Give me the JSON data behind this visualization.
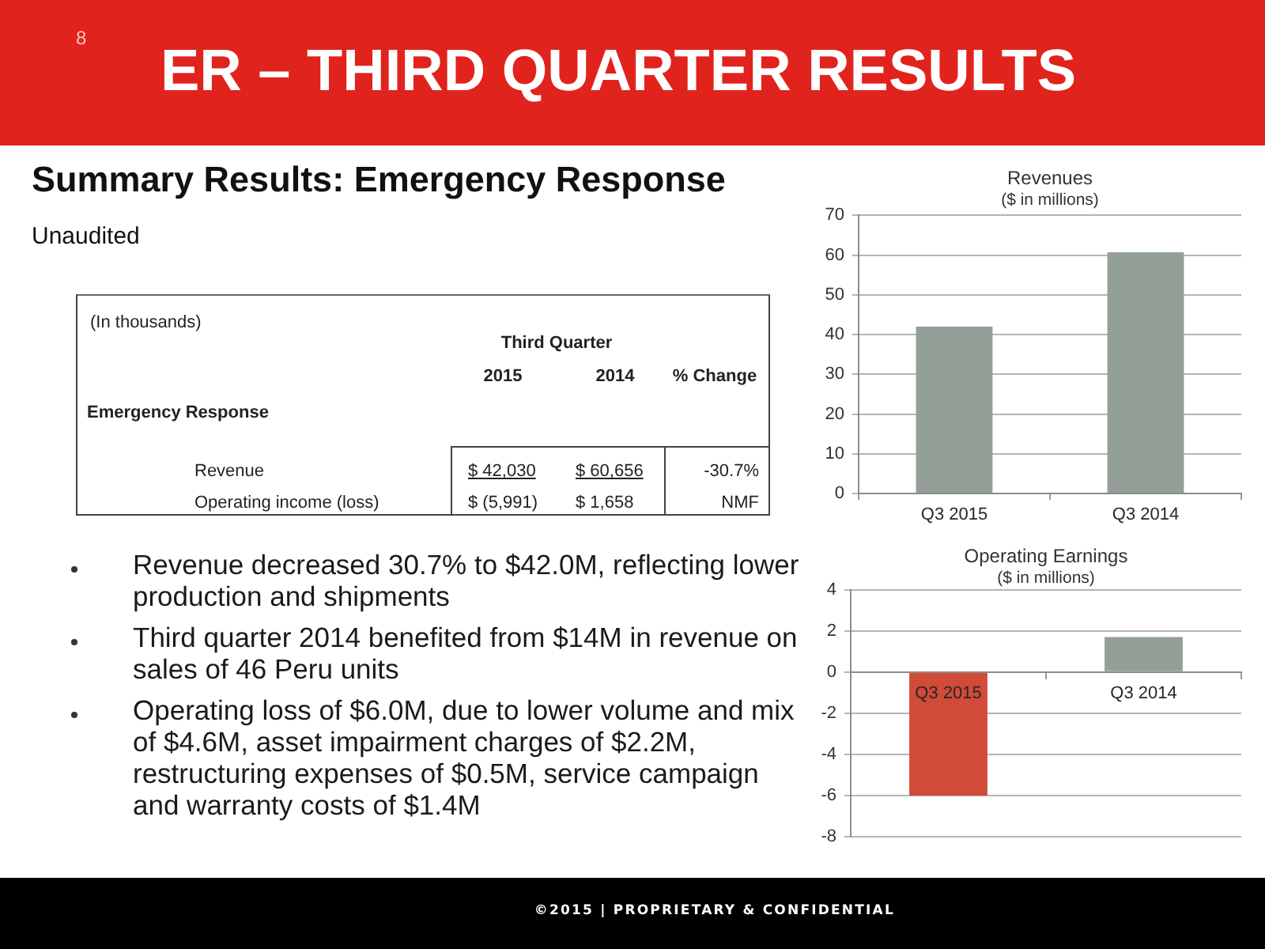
{
  "chart_data": [
    {
      "type": "other",
      "title": "ER – THIRD QUARTER RESULTS",
      "subtitle": "Summary Results: Emergency Response",
      "annotations": [
        "8",
        "Unaudited",
        "Revenue decreased 30.7% to $42.0M, reflecting lower production and shipments",
        "Third quarter 2014 benefited from $14M in revenue on sales of 46 Peru units",
        "Operating loss of $6.0M, due to lower volume and mix of $4.6M, asset impairment charges of $2.2M, restructuring expenses of $0.5M, service campaign and warranty costs of $1.4M",
        "©2015 | PROPRIETARY & CONFIDENTIAL"
      ]
    },
    {
      "type": "other",
      "annotations": [
        "(In thousands)",
        "Third Quarter",
        "2015",
        "2014",
        "% Change",
        "Emergency Response",
        "Revenue",
        "$ 42,030",
        "$ 60,656",
        "-30.7%",
        "Operating income (loss)",
        "$ (5,991)",
        "$ 1,658",
        "NMF"
      ]
    },
    {
      "type": "bar",
      "title": "Revenues",
      "subtitle": "($ in millions)",
      "categories": [
        "Q3 2015",
        "Q3 2014"
      ],
      "values": [
        42,
        60.7
      ],
      "color": "#939f97",
      "ylim": [
        0,
        70
      ],
      "yticks": [
        0,
        10,
        20,
        30,
        40,
        50,
        60,
        70
      ],
      "grid": "y"
    },
    {
      "type": "bar",
      "title": "Operating Earnings",
      "subtitle": "($ in millions)",
      "categories": [
        "Q3 2015",
        "Q3 2014"
      ],
      "values": [
        -6,
        1.7
      ],
      "colors": [
        "#d04b38",
        "#939f97"
      ],
      "ylim": [
        -8,
        4
      ],
      "yticks": [
        -8,
        -6,
        -4,
        -2,
        0,
        2,
        4
      ],
      "grid": "y"
    }
  ]
}
